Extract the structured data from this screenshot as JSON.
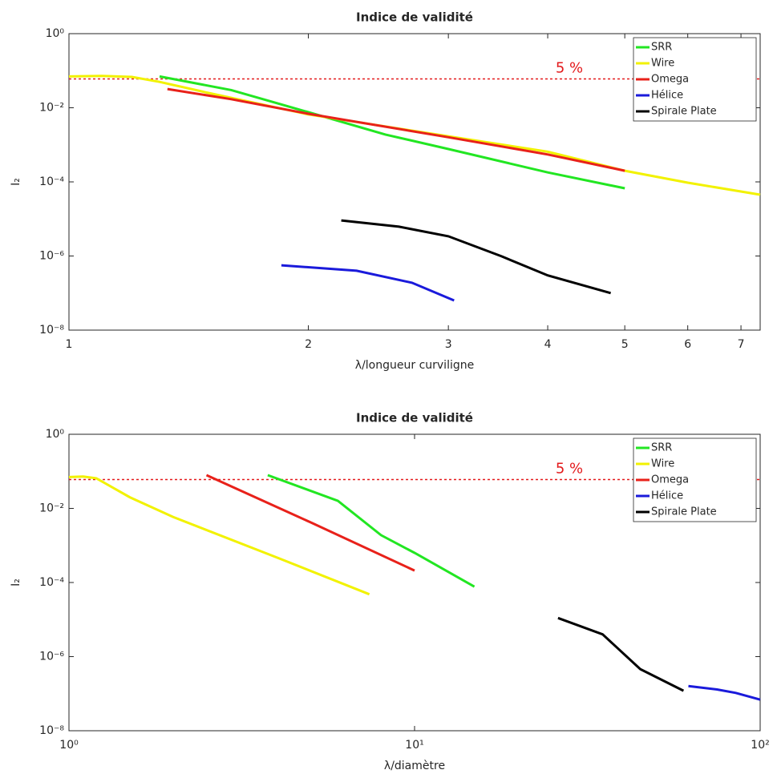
{
  "chart_data": [
    {
      "type": "line",
      "title": "Indice de validité",
      "xlabel": "λ/longueur curviligne",
      "ylabel": "I₂",
      "xscale": "log",
      "yscale": "log",
      "xlim": [
        1,
        7.4
      ],
      "ylim": [
        1e-08,
        1
      ],
      "xticks": [
        1,
        2,
        3,
        4,
        5,
        6,
        7
      ],
      "yticks": [
        {
          "value": 1e-08,
          "label": "10⁻⁸"
        },
        {
          "value": 1e-06,
          "label": "10⁻⁶"
        },
        {
          "value": 0.0001,
          "label": "10⁻⁴"
        },
        {
          "value": 0.01,
          "label": "10⁻²"
        },
        {
          "value": 1,
          "label": "10⁰"
        }
      ],
      "grid": false,
      "legend": "upper right",
      "threshold": {
        "value": 0.06,
        "label": "5 %",
        "color": "#e31a1c"
      },
      "series": [
        {
          "name": "SRR",
          "color": "#22e622",
          "x": [
            1.3,
            1.6,
            2,
            2.5,
            3,
            4,
            5
          ],
          "values": [
            0.07,
            0.03,
            0.0076,
            0.0019,
            0.00077,
            0.00018,
            6.7e-05
          ]
        },
        {
          "name": "Wire",
          "color": "#f2f200",
          "x": [
            1,
            1.1,
            1.2,
            1.3,
            1.5,
            2,
            3,
            4,
            5,
            6,
            7.4
          ],
          "values": [
            0.07,
            0.072,
            0.068,
            0.05,
            0.025,
            0.0066,
            0.0017,
            0.00065,
            0.0002,
            9.5e-05,
            4.5e-05
          ]
        },
        {
          "name": "Omega",
          "color": "#e8211a",
          "x": [
            1.33,
            1.6,
            2,
            3,
            4,
            5
          ],
          "values": [
            0.032,
            0.017,
            0.0069,
            0.0016,
            0.00055,
            0.0002
          ]
        },
        {
          "name": "Hélice",
          "color": "#1a1adb",
          "x": [
            1.85,
            2.3,
            2.7,
            3.05
          ],
          "values": [
            5.6e-07,
            4e-07,
            1.9e-07,
            6.3e-08
          ]
        },
        {
          "name": "Spirale Plate",
          "color": "#000000",
          "x": [
            2.2,
            2.6,
            3,
            3.5,
            4,
            4.8
          ],
          "values": [
            9.1e-06,
            6.2e-06,
            3.4e-06,
            9.8e-07,
            3e-07,
            1e-07
          ]
        }
      ]
    },
    {
      "type": "line",
      "title": "Indice de validité",
      "xlabel": "λ/diamètre",
      "ylabel": "I₂",
      "xscale": "log",
      "yscale": "log",
      "xlim": [
        1,
        100
      ],
      "ylim": [
        1e-08,
        1
      ],
      "xticks": [
        {
          "value": 1,
          "label": "10⁰"
        },
        {
          "value": 10,
          "label": "10¹"
        },
        {
          "value": 100,
          "label": "10²"
        }
      ],
      "yticks": [
        {
          "value": 1e-08,
          "label": "10⁻⁸"
        },
        {
          "value": 1e-06,
          "label": "10⁻⁶"
        },
        {
          "value": 0.0001,
          "label": "10⁻⁴"
        },
        {
          "value": 0.01,
          "label": "10⁻²"
        },
        {
          "value": 1,
          "label": "10⁰"
        }
      ],
      "grid": false,
      "legend": "upper right",
      "threshold": {
        "value": 0.06,
        "label": "5 %",
        "color": "#e31a1c"
      },
      "series": [
        {
          "name": "SRR",
          "color": "#22e622",
          "x": [
            3.76,
            6,
            8,
            10,
            14.9
          ],
          "values": [
            0.079,
            0.016,
            0.0019,
            0.00063,
            7.7e-05
          ]
        },
        {
          "name": "Wire",
          "color": "#f2f200",
          "x": [
            1,
            1.1,
            1.2,
            1.5,
            2,
            4,
            7.4
          ],
          "values": [
            0.07,
            0.072,
            0.065,
            0.02,
            0.0059,
            0.00047,
            4.8e-05
          ]
        },
        {
          "name": "Omega",
          "color": "#e8211a",
          "x": [
            2.5,
            5,
            10
          ],
          "values": [
            0.079,
            0.0042,
            0.00021
          ]
        },
        {
          "name": "Hélice",
          "color": "#1a1adb",
          "x": [
            62,
            75,
            85,
            100
          ],
          "values": [
            1.6e-07,
            1.3e-07,
            1.05e-07,
            6.9e-08
          ]
        },
        {
          "name": "Spirale Plate",
          "color": "#000000",
          "x": [
            26,
            35,
            45,
            60
          ],
          "values": [
            1.1e-05,
            4e-06,
            4.6e-07,
            1.2e-07
          ]
        }
      ]
    }
  ]
}
